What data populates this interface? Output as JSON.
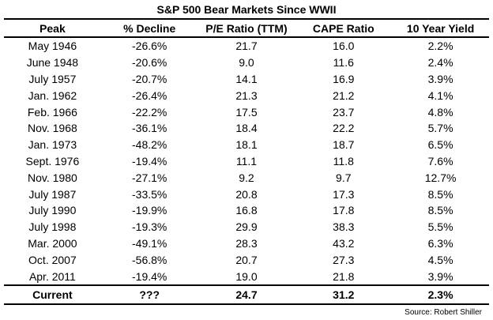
{
  "chart_data": {
    "type": "table",
    "title": "S&P 500 Bear Markets Since WWII",
    "columns": [
      "Peak",
      "% Decline",
      "P/E Ratio (TTM)",
      "CAPE Ratio",
      "10 Year Yield"
    ],
    "rows": [
      [
        "May 1946",
        "-26.6%",
        "21.7",
        "16.0",
        "2.2%"
      ],
      [
        "June 1948",
        "-20.6%",
        "9.0",
        "11.6",
        "2.4%"
      ],
      [
        "July 1957",
        "-20.7%",
        "14.1",
        "16.9",
        "3.9%"
      ],
      [
        "Jan. 1962",
        "-26.4%",
        "21.3",
        "21.2",
        "4.1%"
      ],
      [
        "Feb. 1966",
        "-22.2%",
        "17.5",
        "23.7",
        "4.8%"
      ],
      [
        "Nov. 1968",
        "-36.1%",
        "18.4",
        "22.2",
        "5.7%"
      ],
      [
        "Jan. 1973",
        "-48.2%",
        "18.1",
        "18.7",
        "6.5%"
      ],
      [
        "Sept. 1976",
        "-19.4%",
        "11.1",
        "11.8",
        "7.6%"
      ],
      [
        "Nov. 1980",
        "-27.1%",
        "9.2",
        "9.7",
        "12.7%"
      ],
      [
        "July 1987",
        "-33.5%",
        "20.8",
        "17.3",
        "8.5%"
      ],
      [
        "July 1990",
        "-19.9%",
        "16.8",
        "17.8",
        "8.5%"
      ],
      [
        "July 1998",
        "-19.3%",
        "29.9",
        "38.3",
        "5.5%"
      ],
      [
        "Mar. 2000",
        "-49.1%",
        "28.3",
        "43.2",
        "6.3%"
      ],
      [
        "Oct. 2007",
        "-56.8%",
        "20.7",
        "27.3",
        "4.5%"
      ],
      [
        "Apr. 2011",
        "-19.4%",
        "19.0",
        "21.8",
        "3.9%"
      ]
    ],
    "footer_row": [
      "Current",
      "???",
      "24.7",
      "31.2",
      "2.3%"
    ],
    "source": "Source: Robert Shiller"
  }
}
